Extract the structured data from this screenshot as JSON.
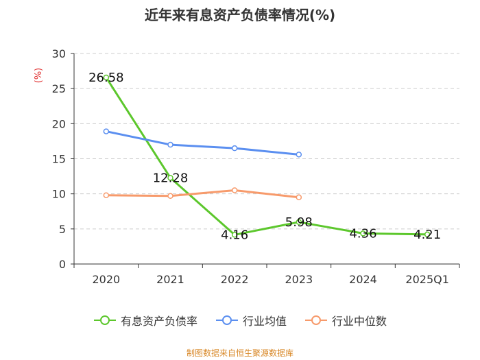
{
  "chart_data": {
    "type": "line",
    "title": "近年来有息资产负债率情况(%)",
    "ylabel": "(%)",
    "xlabel": "",
    "categories": [
      "2020",
      "2021",
      "2022",
      "2023",
      "2024",
      "2025Q1"
    ],
    "ylim": [
      0,
      30
    ],
    "yticks": [
      0,
      5,
      10,
      15,
      20,
      25,
      30
    ],
    "grid": true,
    "legend_position": "bottom",
    "series": [
      {
        "name": "有息资产负债率",
        "color": "#5cc72c",
        "values": [
          26.58,
          12.28,
          4.16,
          5.98,
          4.36,
          4.21
        ],
        "labels": [
          "26.58",
          "12.28",
          "4.16",
          "5.98",
          "4.36",
          "4.21"
        ]
      },
      {
        "name": "行业均值",
        "color": "#5b8ff0",
        "values": [
          18.9,
          17.0,
          16.5,
          15.6,
          null,
          null
        ]
      },
      {
        "name": "行业中位数",
        "color": "#f79a6b",
        "values": [
          9.8,
          9.7,
          10.5,
          9.5,
          null,
          null
        ]
      }
    ]
  },
  "source": "制图数据来自恒生聚源数据库"
}
